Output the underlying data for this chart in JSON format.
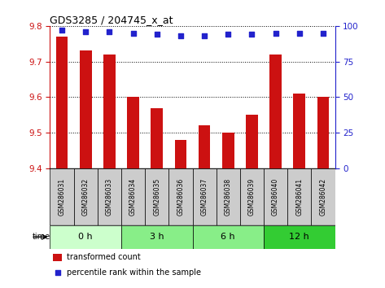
{
  "title": "GDS3285 / 204745_x_at",
  "samples": [
    "GSM286031",
    "GSM286032",
    "GSM286033",
    "GSM286034",
    "GSM286035",
    "GSM286036",
    "GSM286037",
    "GSM286038",
    "GSM286039",
    "GSM286040",
    "GSM286041",
    "GSM286042"
  ],
  "bar_values": [
    9.77,
    9.73,
    9.72,
    9.6,
    9.57,
    9.48,
    9.52,
    9.5,
    9.55,
    9.72,
    9.61,
    9.6
  ],
  "percentile_values": [
    97,
    96,
    96,
    95,
    94,
    93,
    93,
    94,
    94,
    95,
    95,
    95
  ],
  "ylim_left": [
    9.4,
    9.8
  ],
  "ylim_right": [
    0,
    100
  ],
  "yticks_left": [
    9.4,
    9.5,
    9.6,
    9.7,
    9.8
  ],
  "yticks_right": [
    0,
    25,
    50,
    75,
    100
  ],
  "bar_color": "#cc1111",
  "dot_color": "#2222cc",
  "time_groups": [
    {
      "label": "0 h",
      "start": 0,
      "end": 3,
      "color": "#ccffcc"
    },
    {
      "label": "3 h",
      "start": 3,
      "end": 6,
      "color": "#88ee88"
    },
    {
      "label": "6 h",
      "start": 6,
      "end": 9,
      "color": "#88ee88"
    },
    {
      "label": "12 h",
      "start": 9,
      "end": 12,
      "color": "#33cc33"
    }
  ],
  "sample_box_color": "#cccccc",
  "legend_bar_label": "transformed count",
  "legend_dot_label": "percentile rank within the sample",
  "time_label": "time",
  "bg_color": "#ffffff",
  "tick_color_left": "#cc1111",
  "tick_color_right": "#2222cc"
}
